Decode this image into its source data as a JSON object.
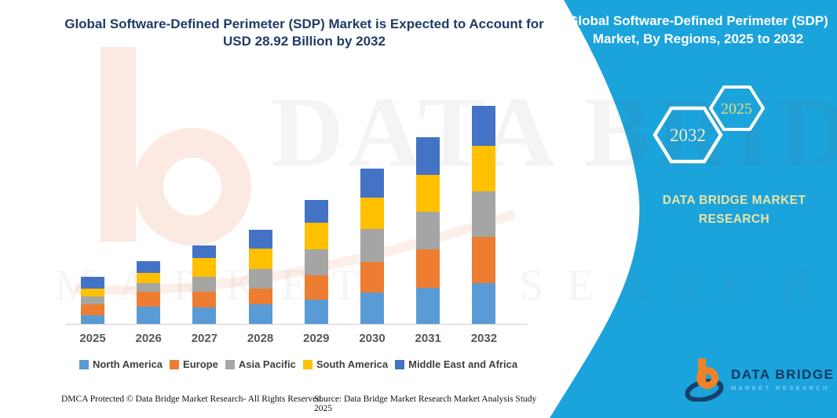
{
  "left_panel": {
    "title": "Global Software-Defined Perimeter (SDP) Market is Expected to Account for USD 28.92 Billion by 2032",
    "footer_dmca": "DMCA Protected © Data Bridge Market Research- All Rights Reserved.",
    "footer_source": "Source: Data Bridge Market Research Market Analysis Study 2025"
  },
  "right_panel": {
    "background_color": "#1ba3dc",
    "title": "Global Software-Defined Perimeter (SDP) Market, By Regions, 2025 to 2032",
    "hexagon_back_year": "2032",
    "hexagon_front_year": "2025",
    "brand_text": "DATA BRIDGE MARKET RESEARCH",
    "logo_name": "DATA BRIDGE",
    "logo_subtitle": "MARKET RESEARCH",
    "logo_colors": {
      "mark_orange": "#f08326",
      "mark_navy": "#16406b"
    }
  },
  "watermarks": {
    "big_text": "DATA BRIDGE",
    "small_text": "MARKET RESEARCH"
  },
  "chart_data": {
    "type": "bar",
    "stacked": true,
    "title": "Global Software-Defined Perimeter (SDP) Market, By Regions, 2025 to 2032 (USD Billion)",
    "unit": "USD Billion",
    "highlight_total_2032": 28.92,
    "categories": [
      "2025",
      "2026",
      "2027",
      "2028",
      "2029",
      "2030",
      "2031",
      "2032"
    ],
    "series": [
      {
        "name": "North America",
        "color": "#5b9bd5",
        "values": [
          1.2,
          2.3,
          2.2,
          2.6,
          3.2,
          4.2,
          4.8,
          5.4
        ]
      },
      {
        "name": "Europe",
        "color": "#ed7d31",
        "values": [
          1.4,
          2.0,
          2.1,
          2.1,
          3.3,
          4.0,
          5.1,
          6.2
        ]
      },
      {
        "name": "Asia Pacific",
        "color": "#a5a5a5",
        "values": [
          1.0,
          1.1,
          2.0,
          2.6,
          3.4,
          4.4,
          5.0,
          6.0
        ]
      },
      {
        "name": "South America",
        "color": "#ffc000",
        "values": [
          1.1,
          1.4,
          2.4,
          2.7,
          3.5,
          4.1,
          4.9,
          6.0
        ]
      },
      {
        "name": "Middle East and Africa",
        "color": "#4472c4",
        "values": [
          1.5,
          1.5,
          1.7,
          2.5,
          3.0,
          3.9,
          5.0,
          5.32
        ]
      }
    ],
    "totals_estimated": [
      6.2,
      8.3,
      10.4,
      12.5,
      16.4,
      20.6,
      24.8,
      28.92
    ],
    "xlabel": "",
    "ylabel": "",
    "ylim": [
      0,
      30
    ],
    "y_axis_visible": false,
    "grid": false,
    "legend_position": "bottom"
  }
}
